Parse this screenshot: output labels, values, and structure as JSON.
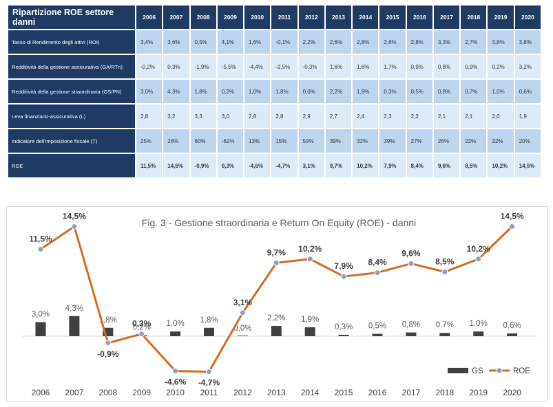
{
  "table": {
    "title": "Ripartizione ROE settore danni",
    "years": [
      "2006",
      "2007",
      "2008",
      "2009",
      "2010",
      "2011",
      "2012",
      "2013",
      "2014",
      "2015",
      "2016",
      "2017",
      "2018",
      "2019",
      "2020"
    ],
    "rows": [
      {
        "label": "Tasso di Rendimento degli attivi (ROI)",
        "values": [
          "3,4%",
          "3,6%",
          "0,5%",
          "4,1%",
          "1,6%",
          "-0,1%",
          "2,2%",
          "2,6%",
          "2,8%",
          "2,6%",
          "2,8%",
          "3,3%",
          "2,7%",
          "3,8%",
          "3,8%"
        ]
      },
      {
        "label": "Redditività della gestione assicurativa (GA/RTn)",
        "values": [
          "-0,2%",
          "0,3%",
          "-1,9%",
          "-5,5%",
          "-4,4%",
          "-2,5%",
          "-0,3%",
          "1,6%",
          "1,6%",
          "1,7%",
          "0,9%",
          "0,8%",
          "0,9%",
          "0,2%",
          "3,2%"
        ]
      },
      {
        "label": "Redditività della gestione straordinaria (GS/PN)",
        "values": [
          "3,0%",
          "4,3%",
          "1,8%",
          "0,2%",
          "1,0%",
          "1,8%",
          "0,0%",
          "2,2%",
          "1,9%",
          "0,3%",
          "0,5%",
          "0,8%",
          "0,7%",
          "1,0%",
          "0,6%"
        ]
      },
      {
        "label": "Leva finanziario-assicurativa (L)",
        "values": [
          "2,8",
          "3,2",
          "3,3",
          "3,0",
          "2,8",
          "2,8",
          "2,9",
          "2,7",
          "2,4",
          "2,3",
          "2,2",
          "2,1",
          "2,1",
          "2,0",
          "1,9"
        ]
      },
      {
        "label": "Indicatore dell'imposizione fiscale (T)",
        "values": [
          "25%",
          "28%",
          "60%",
          "-62%",
          "13%",
          "15%",
          "59%",
          "39%",
          "32%",
          "39%",
          "27%",
          "26%",
          "22%",
          "22%",
          "20%"
        ]
      },
      {
        "label": "ROE",
        "values": [
          "11,5%",
          "14,5%",
          "-0,9%",
          "0,3%",
          "-4,6%",
          "-4,7%",
          "3,1%",
          "9,7%",
          "10,2%",
          "7,9%",
          "8,4%",
          "9,6%",
          "8,5%",
          "10,2%",
          "14,5%"
        ]
      }
    ]
  },
  "chart_data": {
    "type": "bar+line",
    "title": "Fig. 3 - Gestione straordinaria e Return On Equity (ROE) - danni",
    "categories": [
      "2006",
      "2007",
      "2008",
      "2009",
      "2010",
      "2011",
      "2012",
      "2013",
      "2014",
      "2015",
      "2016",
      "2017",
      "2018",
      "2019",
      "2020"
    ],
    "series": [
      {
        "name": "GS",
        "kind": "bar",
        "color": "#404040",
        "values": [
          3.0,
          4.3,
          1.8,
          0.2,
          1.0,
          1.8,
          0.0,
          2.2,
          1.9,
          0.3,
          0.5,
          0.8,
          0.7,
          1.0,
          0.6
        ],
        "labels": [
          "3,0%",
          "4,3%",
          "1,8%",
          "0,2%",
          "1,0%",
          "1,8%",
          "0,0%",
          "2,2%",
          "1,9%",
          "0,3%",
          "0,5%",
          "0,8%",
          "0,7%",
          "1,0%",
          "0,6%"
        ]
      },
      {
        "name": "ROE",
        "kind": "line",
        "color": "#d46b1f",
        "marker_color": "#8aa3c1",
        "values": [
          11.5,
          14.5,
          -0.9,
          0.3,
          -4.6,
          -4.7,
          3.1,
          9.7,
          10.2,
          7.9,
          8.4,
          9.6,
          8.5,
          10.2,
          14.5
        ],
        "labels": [
          "11,5%",
          "14,5%",
          "-0,9%",
          "0,3%",
          "-4,6%",
          "-4,7%",
          "3,1%",
          "9,7%",
          "10,2%",
          "7,9%",
          "8,4%",
          "9,6%",
          "8,5%",
          "10,2%",
          "14,5%"
        ]
      }
    ],
    "legend": [
      "GS",
      "ROE"
    ],
    "legend_position": "bottom-right",
    "grid": false
  }
}
